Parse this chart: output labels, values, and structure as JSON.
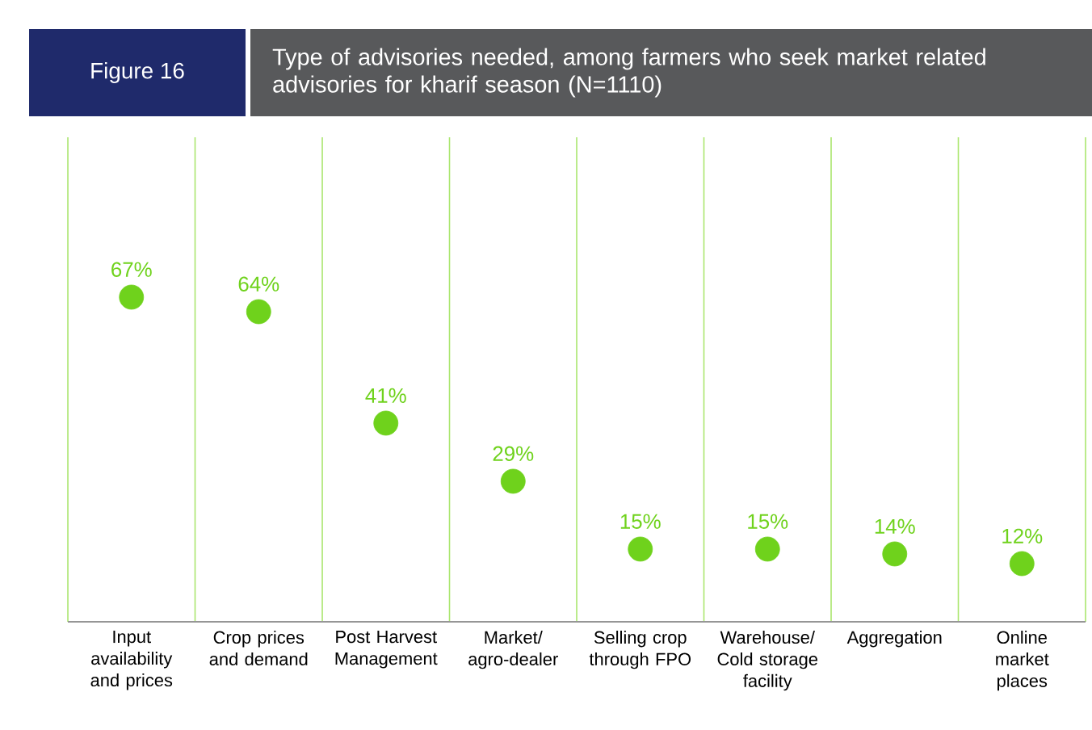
{
  "chart_data": {
    "type": "scatter",
    "title": "Type of advisories needed, among farmers who seek market related advisories for kharif season (N=1110)",
    "annotations": [
      "Figure 16"
    ],
    "categories": [
      "Input availability and prices",
      "Crop prices and demand",
      "Post Harvest Management",
      "Market/ agro-dealer",
      "Selling crop through FPO",
      "Warehouse/ Cold storage facility",
      "Aggregation",
      "Online market places"
    ],
    "values": [
      67,
      64,
      41,
      29,
      15,
      15,
      14,
      12
    ],
    "value_labels": [
      "67%",
      "64%",
      "41%",
      "29%",
      "15%",
      "15%",
      "14%",
      "12%"
    ],
    "color": "#6fd21c",
    "marker": "circle",
    "grid": "x",
    "ylim": [
      0,
      100
    ],
    "tick_labels": "x"
  }
}
